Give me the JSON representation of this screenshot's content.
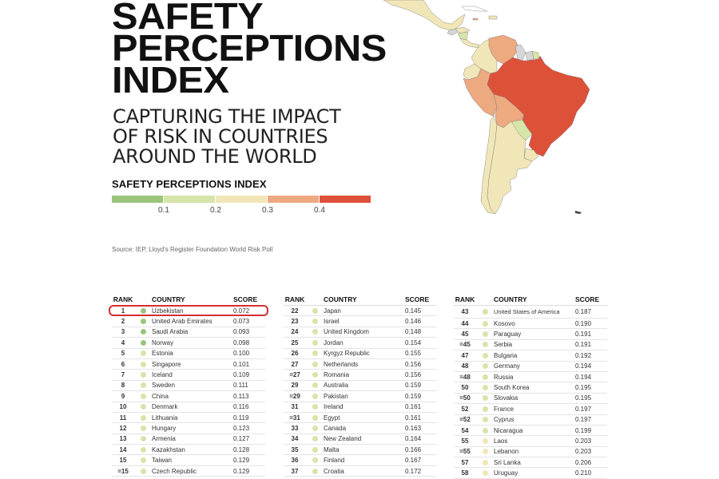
{
  "title_lines": [
    "SAFETY",
    "PERCEPTIONS",
    "INDEX"
  ],
  "subtitle_lines": [
    "CAPTURING THE IMPACT",
    "OF RISK IN COUNTRIES",
    "AROUND THE WORLD"
  ],
  "legend": {
    "title": "SAFETY PERCEPTIONS INDEX",
    "colors": [
      "#9bc57a",
      "#d6e5a9",
      "#f0e6b8",
      "#eda97f",
      "#dd5139"
    ],
    "ticks": [
      "0.1",
      "0.2",
      "0.3",
      "0.4"
    ]
  },
  "source": "Source: IEP, Lloyd's Register Foundation World Risk Poll",
  "map": {
    "region": "Latin America",
    "colors": {
      "low": "#9bc57a",
      "low_mid": "#d6e5a9",
      "mid": "#f0e6b8",
      "high_mid": "#eda97f",
      "high": "#dd5139",
      "no_data": "#d6d6d6"
    }
  },
  "headers": {
    "rank": "RANK",
    "country": "COUNTRY",
    "score": "SCORE"
  },
  "tables": [
    {
      "rows": [
        {
          "rank": "1",
          "country": "Uzbekistan",
          "score": "0.072",
          "band": "low",
          "highlighted": true
        },
        {
          "rank": "2",
          "country": "United Arab Emirates",
          "score": "0.073",
          "band": "low"
        },
        {
          "rank": "3",
          "country": "Saudi Arabia",
          "score": "0.093",
          "band": "low"
        },
        {
          "rank": "4",
          "country": "Norway",
          "score": "0.098",
          "band": "low"
        },
        {
          "rank": "5",
          "country": "Estonia",
          "score": "0.100",
          "band": "low_mid"
        },
        {
          "rank": "6",
          "country": "Singapore",
          "score": "0.101",
          "band": "low_mid"
        },
        {
          "rank": "7",
          "country": "Iceland",
          "score": "0.109",
          "band": "low_mid"
        },
        {
          "rank": "8",
          "country": "Sweden",
          "score": "0.111",
          "band": "low_mid"
        },
        {
          "rank": "9",
          "country": "China",
          "score": "0.113",
          "band": "low_mid"
        },
        {
          "rank": "10",
          "country": "Denmark",
          "score": "0.116",
          "band": "low_mid"
        },
        {
          "rank": "11",
          "country": "Lithuania",
          "score": "0.119",
          "band": "low_mid"
        },
        {
          "rank": "12",
          "country": "Hungary",
          "score": "0.123",
          "band": "low_mid"
        },
        {
          "rank": "13",
          "country": "Armenia",
          "score": "0.127",
          "band": "low_mid"
        },
        {
          "rank": "14",
          "country": "Kazakhstan",
          "score": "0.128",
          "band": "low_mid"
        },
        {
          "rank": "15",
          "country": "Taiwan",
          "score": "0.129",
          "band": "low_mid"
        },
        {
          "rank": "=15",
          "country": "Czech Republic",
          "score": "0.129",
          "band": "low_mid"
        }
      ]
    },
    {
      "rows": [
        {
          "rank": "22",
          "country": "Japan",
          "score": "0.145",
          "band": "low_mid"
        },
        {
          "rank": "23",
          "country": "Israel",
          "score": "0.146",
          "band": "low_mid"
        },
        {
          "rank": "24",
          "country": "United Kingdom",
          "score": "0.148",
          "band": "low_mid"
        },
        {
          "rank": "25",
          "country": "Jordan",
          "score": "0.154",
          "band": "low_mid"
        },
        {
          "rank": "26",
          "country": "Kyrgyz Republic",
          "score": "0.155",
          "band": "low_mid"
        },
        {
          "rank": "27",
          "country": "Netherlands",
          "score": "0.156",
          "band": "low_mid"
        },
        {
          "rank": "=27",
          "country": "Romania",
          "score": "0.156",
          "band": "low_mid"
        },
        {
          "rank": "29",
          "country": "Australia",
          "score": "0.159",
          "band": "low_mid"
        },
        {
          "rank": "=29",
          "country": "Pakistan",
          "score": "0.159",
          "band": "low_mid"
        },
        {
          "rank": "31",
          "country": "Ireland",
          "score": "0.161",
          "band": "low_mid"
        },
        {
          "rank": "=31",
          "country": "Egypt",
          "score": "0.161",
          "band": "low_mid"
        },
        {
          "rank": "33",
          "country": "Canada",
          "score": "0.163",
          "band": "low_mid"
        },
        {
          "rank": "34",
          "country": "New Zealand",
          "score": "0.164",
          "band": "low_mid"
        },
        {
          "rank": "35",
          "country": "Malta",
          "score": "0.166",
          "band": "low_mid"
        },
        {
          "rank": "36",
          "country": "Finland",
          "score": "0.167",
          "band": "low_mid"
        },
        {
          "rank": "37",
          "country": "Croatia",
          "score": "0.172",
          "band": "low_mid"
        }
      ]
    },
    {
      "rows": [
        {
          "rank": "43",
          "country": "United States of America",
          "score": "0.187",
          "band": "low_mid",
          "two_line": true
        },
        {
          "rank": "44",
          "country": "Kosovo",
          "score": "0.190",
          "band": "low_mid"
        },
        {
          "rank": "45",
          "country": "Paraguay",
          "score": "0.191",
          "band": "low_mid"
        },
        {
          "rank": "=45",
          "country": "Serbia",
          "score": "0.191",
          "band": "low_mid"
        },
        {
          "rank": "47",
          "country": "Bulgaria",
          "score": "0.192",
          "band": "low_mid"
        },
        {
          "rank": "48",
          "country": "Germany",
          "score": "0.194",
          "band": "low_mid"
        },
        {
          "rank": "=48",
          "country": "Russia",
          "score": "0.194",
          "band": "low_mid"
        },
        {
          "rank": "50",
          "country": "South Korea",
          "score": "0.195",
          "band": "low_mid"
        },
        {
          "rank": "=50",
          "country": "Slovakia",
          "score": "0.195",
          "band": "low_mid"
        },
        {
          "rank": "52",
          "country": "France",
          "score": "0.197",
          "band": "low_mid"
        },
        {
          "rank": "=52",
          "country": "Cyprus",
          "score": "0.197",
          "band": "low_mid"
        },
        {
          "rank": "54",
          "country": "Nicaragua",
          "score": "0.199",
          "band": "low_mid"
        },
        {
          "rank": "55",
          "country": "Laos",
          "score": "0.203",
          "band": "mid"
        },
        {
          "rank": "=55",
          "country": "Lebanon",
          "score": "0.203",
          "band": "mid"
        },
        {
          "rank": "57",
          "country": "Sri Lanka",
          "score": "0.206",
          "band": "mid"
        },
        {
          "rank": "58",
          "country": "Uruguay",
          "score": "0.210",
          "band": "mid"
        }
      ]
    }
  ]
}
